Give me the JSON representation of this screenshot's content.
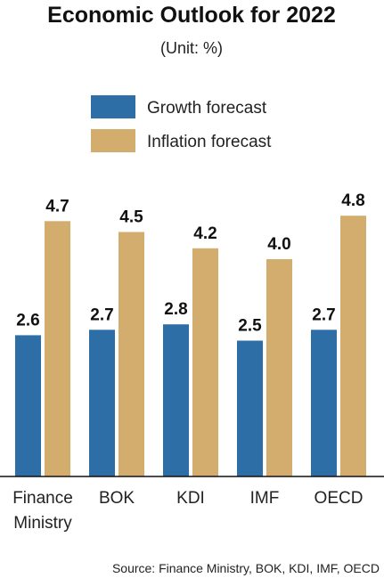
{
  "chart_data": {
    "type": "bar",
    "title": "Economic Outlook for 2022",
    "subtitle": "(Unit: %)",
    "categories": [
      [
        "Finance",
        "Ministry"
      ],
      [
        "BOK"
      ],
      [
        "KDI"
      ],
      [
        "IMF"
      ],
      [
        "OECD"
      ]
    ],
    "series": [
      {
        "name": "Growth forecast",
        "color": "#2e6ea6",
        "values": [
          2.6,
          2.7,
          2.8,
          2.5,
          2.7
        ],
        "labels": [
          "2.6",
          "2.7",
          "2.8",
          "2.5",
          "2.7"
        ]
      },
      {
        "name": "Inflation forecast",
        "color": "#d2ad6e",
        "values": [
          4.7,
          4.5,
          4.2,
          4.0,
          4.8
        ],
        "labels": [
          "4.7",
          "4.5",
          "4.2",
          "4.0",
          "4.8"
        ]
      }
    ],
    "ylim": [
      0,
      4.8
    ],
    "grid": false,
    "legend": "top-left",
    "source": "Source: Finance Ministry, BOK, KDI, IMF, OECD"
  }
}
